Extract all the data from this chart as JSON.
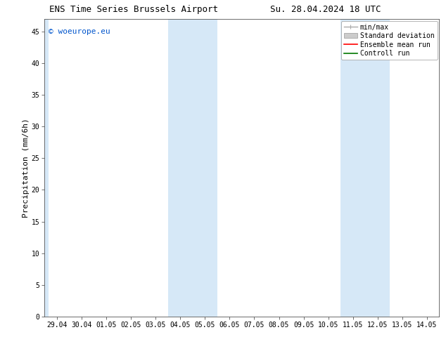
{
  "title_left": "ENS Time Series Brussels Airport",
  "title_right": "Su. 28.04.2024 18 UTC",
  "ylabel": "Precipitation (mm/6h)",
  "watermark": "© woeurope.eu",
  "watermark_color": "#0055cc",
  "background_color": "#ffffff",
  "plot_bg_color": "#ffffff",
  "x_labels": [
    "29.04",
    "30.04",
    "01.05",
    "02.05",
    "03.05",
    "04.05",
    "05.05",
    "06.05",
    "07.05",
    "08.05",
    "09.05",
    "10.05",
    "11.05",
    "12.05",
    "13.05",
    "14.05"
  ],
  "x_ticks_pos": [
    0,
    1,
    2,
    3,
    4,
    5,
    6,
    7,
    8,
    9,
    10,
    11,
    12,
    13,
    14,
    15
  ],
  "xlim": [
    -0.5,
    15.5
  ],
  "ylim": [
    0,
    47
  ],
  "yticks": [
    0,
    5,
    10,
    15,
    20,
    25,
    30,
    35,
    40,
    45
  ],
  "shaded_bands": [
    {
      "x_start": -0.5,
      "x_end": -0.35,
      "color": "#d6e8f7",
      "alpha": 1.0
    },
    {
      "x_start": 4.5,
      "x_end": 5.5,
      "color": "#d6e8f7",
      "alpha": 1.0
    },
    {
      "x_start": 5.5,
      "x_end": 6.5,
      "color": "#d6e8f7",
      "alpha": 1.0
    },
    {
      "x_start": 11.5,
      "x_end": 12.5,
      "color": "#d6e8f7",
      "alpha": 1.0
    },
    {
      "x_start": 12.5,
      "x_end": 13.5,
      "color": "#d6e8f7",
      "alpha": 1.0
    }
  ],
  "legend_labels": [
    "min/max",
    "Standard deviation",
    "Ensemble mean run",
    "Controll run"
  ],
  "legend_colors": [
    "#aaaaaa",
    "#cccccc",
    "#ff0000",
    "#007700"
  ],
  "font_family": "DejaVu Sans Mono",
  "title_fontsize": 9,
  "tick_fontsize": 7,
  "ylabel_fontsize": 8,
  "legend_fontsize": 7,
  "watermark_fontsize": 8
}
